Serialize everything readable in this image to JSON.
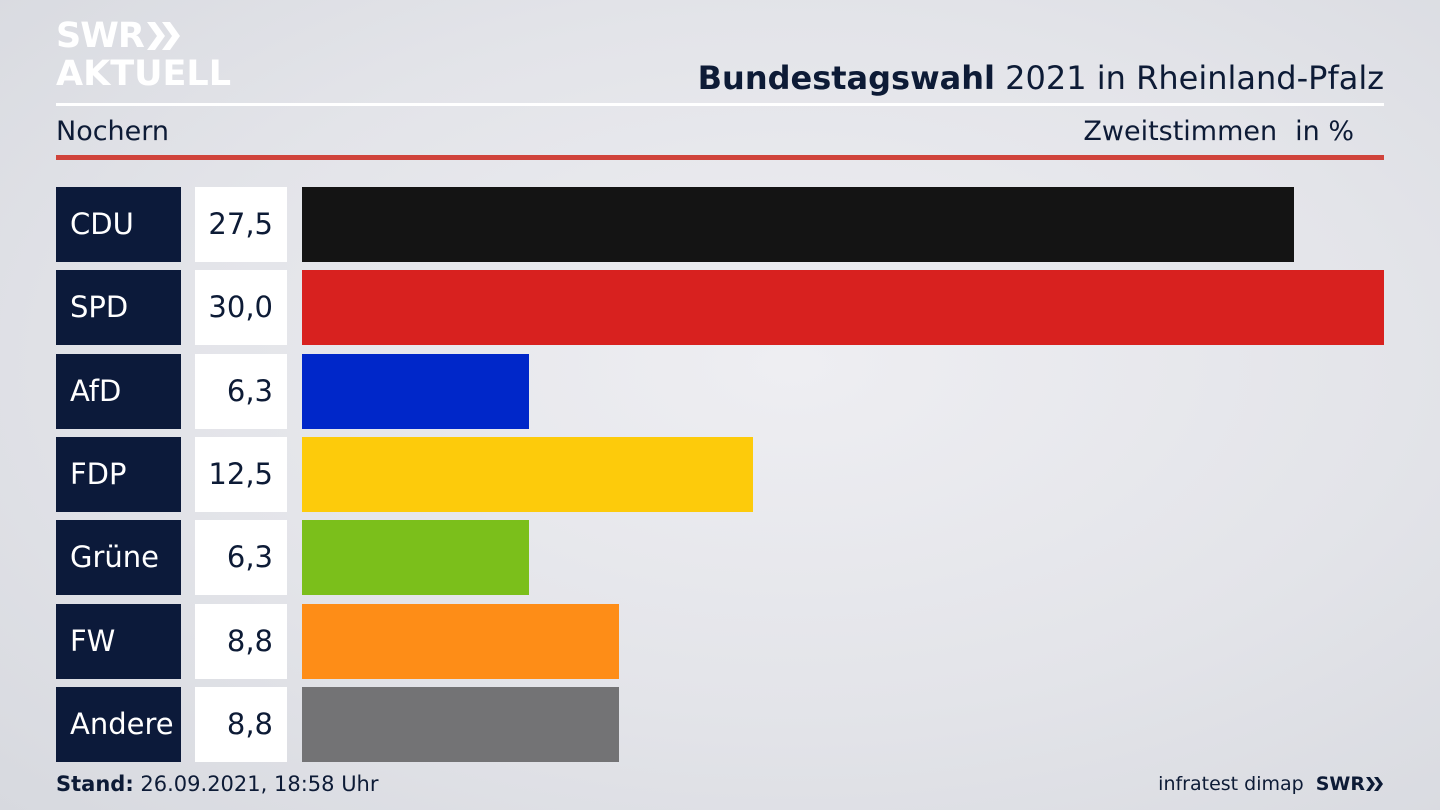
{
  "logo": {
    "line1": "SWR",
    "line2": "AKTUELL"
  },
  "header": {
    "title_bold": "Bundestagswahl",
    "title_rest": "2021 in Rheinland-Pfalz",
    "place": "Nochern",
    "measure": "Zweitstimmen",
    "unit": "in %"
  },
  "chart_data": {
    "type": "bar",
    "orientation": "horizontal",
    "categories": [
      "CDU",
      "SPD",
      "AfD",
      "FDP",
      "Grüne",
      "FW",
      "Andere"
    ],
    "values": [
      27.5,
      30.0,
      6.3,
      12.5,
      6.3,
      8.8,
      8.8
    ],
    "value_labels": [
      "27,5",
      "30,0",
      "6,3",
      "12,5",
      "6,3",
      "8,8",
      "8,8"
    ],
    "colors": [
      "#141414",
      "#d8211f",
      "#0027c9",
      "#fdcb0b",
      "#7bbf1b",
      "#fe8d17",
      "#737375"
    ],
    "xlim": [
      0,
      30.0
    ]
  },
  "footer": {
    "stand_label": "Stand:",
    "stand_value": "26.09.2021, 18:58 Uhr",
    "source": "infratest dimap",
    "brand": "SWR"
  }
}
